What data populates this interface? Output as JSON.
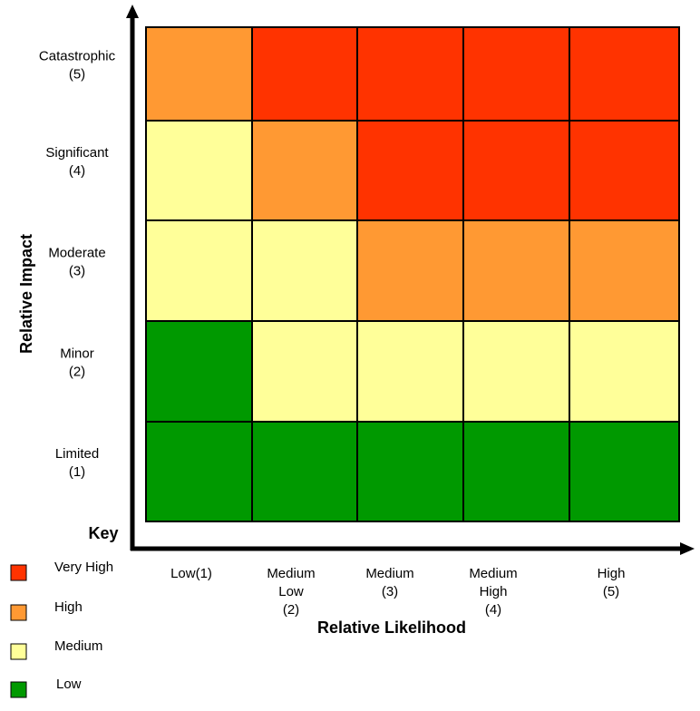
{
  "colors": {
    "very_high": "#FF3300",
    "high": "#FF9933",
    "medium": "#FFFF99",
    "low": "#009900"
  },
  "chart_data": {
    "type": "heatmap",
    "title": "",
    "xlabel": "Relative Likelihood",
    "ylabel": "Relative Impact",
    "x_ticks": [
      [
        "Low(1)"
      ],
      [
        "Medium",
        "Low",
        "(2)"
      ],
      [
        "Medium",
        "(3)"
      ],
      [
        "Medium",
        "High",
        "(4)"
      ],
      [
        "High",
        "(5)"
      ]
    ],
    "y_ticks": [
      [
        "Catastrophic",
        "(5)"
      ],
      [
        "Significant",
        "(4)"
      ],
      [
        "Moderate",
        "(3)"
      ],
      [
        "Minor",
        "(2)"
      ],
      [
        "Limited",
        "(1)"
      ]
    ],
    "cells": [
      [
        "high",
        "very_high",
        "very_high",
        "very_high",
        "very_high"
      ],
      [
        "medium",
        "high",
        "very_high",
        "very_high",
        "very_high"
      ],
      [
        "medium",
        "medium",
        "high",
        "high",
        "high"
      ],
      [
        "low",
        "medium",
        "medium",
        "medium",
        "medium"
      ],
      [
        "low",
        "low",
        "low",
        "low",
        "low"
      ]
    ],
    "legend": {
      "title": "Key",
      "entries": [
        {
          "level": "very_high",
          "label": "Very High"
        },
        {
          "level": "high",
          "label": "High"
        },
        {
          "level": "medium",
          "label": "Medium"
        },
        {
          "level": "low",
          "label": "Low"
        }
      ]
    }
  }
}
